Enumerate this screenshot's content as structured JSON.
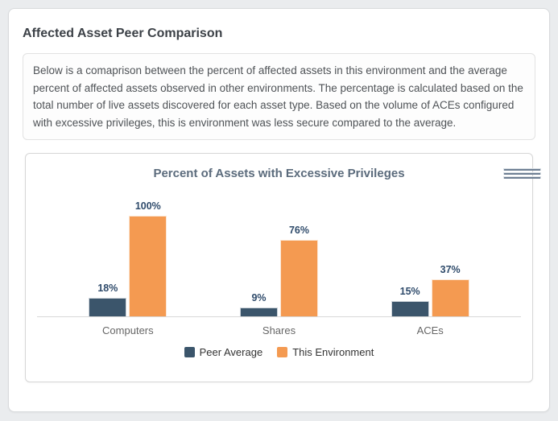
{
  "header": {
    "title": "Affected Asset Peer Comparison"
  },
  "description": {
    "text": "Below is a comaprison between the percent of affected assets in this environment and the average percent of affected assets observed in other environments. The percentage is calculated based on the total number of live assets discovered for each asset type. Based on the volume of ACEs configured with excessive privileges, this is environment was less secure compared to the average."
  },
  "chart": {
    "title": "Percent of Assets with Excessive Privileges",
    "menu_icon": "hamburger-menu-icon"
  },
  "chart_data": {
    "type": "bar",
    "title": "Percent of Assets with Excessive Privileges",
    "categories": [
      "Computers",
      "Shares",
      "ACEs"
    ],
    "series": [
      {
        "name": "Peer Average",
        "color": "#3b556b",
        "values": [
          18,
          9,
          15
        ]
      },
      {
        "name": "This Environment",
        "color": "#f49a51",
        "values": [
          100,
          76,
          37
        ]
      }
    ],
    "value_suffix": "%",
    "ylim": [
      0,
      100
    ],
    "grid": false,
    "data_labels": true,
    "data_label_color": "#2f4b6b",
    "legend_position": "bottom"
  },
  "colors": {
    "page_background": "#eaecee",
    "card_background": "#ffffff",
    "axis_line": "#d8d8d8",
    "chart_title": "#5b6b7c"
  }
}
